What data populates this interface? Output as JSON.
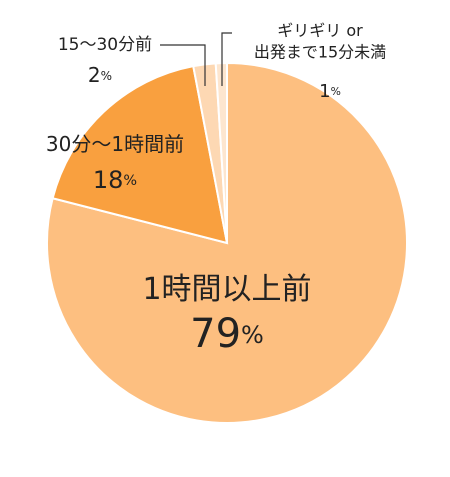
{
  "chart_data": {
    "type": "pie",
    "categories": [
      "1時間以上前",
      "30分〜1時間前",
      "15〜30分前",
      "ギリギリ or\n出発まで15分未満"
    ],
    "values": [
      79,
      18,
      2,
      1
    ],
    "value_labels": [
      "79%",
      "18%",
      "2%",
      "1%"
    ],
    "colors": [
      "#fdbf80",
      "#f9a03f",
      "#fdd8b3",
      "#fde6cf"
    ]
  }
}
